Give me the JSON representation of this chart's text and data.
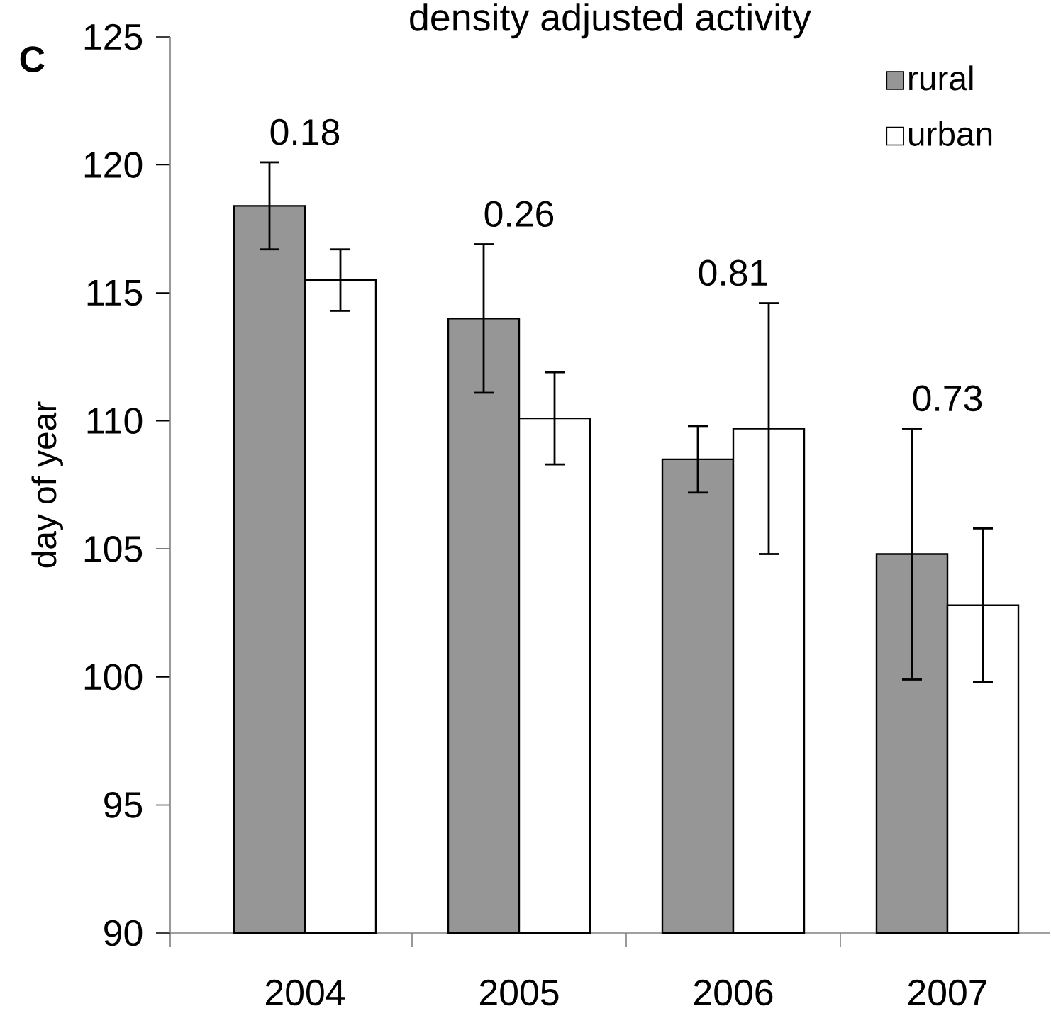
{
  "chart_data": {
    "type": "bar",
    "title": "density adjusted activity",
    "ylabel": "day of year",
    "categories": [
      "2004",
      "2005",
      "2006",
      "2007"
    ],
    "series": [
      {
        "name": "rural",
        "color": "#969696",
        "values": [
          118.4,
          114.0,
          108.5,
          104.8
        ],
        "errors": [
          1.7,
          2.9,
          1.3,
          4.9
        ]
      },
      {
        "name": "urban",
        "color": "#ffffff",
        "values": [
          115.5,
          110.1,
          109.7,
          102.8
        ],
        "errors": [
          1.2,
          1.8,
          4.9,
          3.0
        ]
      }
    ],
    "ylim": [
      90,
      125
    ],
    "yticks": [
      90,
      95,
      100,
      105,
      110,
      115,
      120,
      125
    ],
    "annotations": [
      "C",
      "0.18",
      "0.26",
      "0.81",
      "0.73"
    ],
    "grid": false,
    "legend": "top right"
  }
}
